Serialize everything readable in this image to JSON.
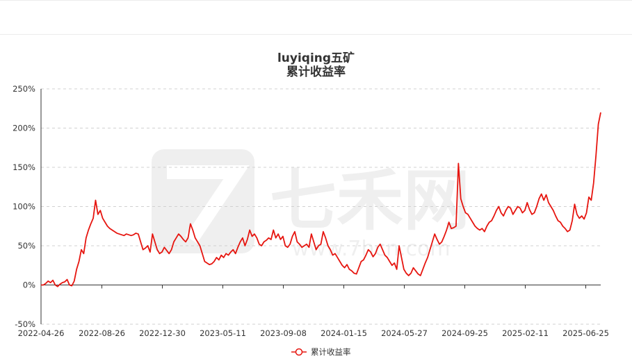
{
  "chart_data": {
    "type": "line",
    "title": "luyiqing五矿",
    "subtitle": "累计收益率",
    "watermark": {
      "brand": "七禾网",
      "url": "www.7hcn.com"
    },
    "y_ticks": [
      "250%",
      "200%",
      "150%",
      "100%",
      "50%",
      "0%",
      "-50%"
    ],
    "ylim": [
      -50,
      250
    ],
    "x_ticks": [
      "2022-04-26",
      "2022-08-26",
      "2022-12-30",
      "2023-05-11",
      "2023-09-08",
      "2024-01-15",
      "2024-05-27",
      "2024-09-25",
      "2025-02-11",
      "2025-06-25"
    ],
    "grid": true,
    "legend": "bottom-center",
    "series": [
      {
        "name": "累计收益率",
        "color": "#e6150f",
        "values": [
          0,
          0,
          2,
          5,
          3,
          6,
          0,
          -2,
          1,
          3,
          4,
          7,
          0,
          -1,
          5,
          20,
          30,
          45,
          40,
          60,
          70,
          78,
          85,
          108,
          90,
          95,
          85,
          80,
          75,
          72,
          70,
          68,
          66,
          65,
          64,
          63,
          65,
          64,
          63,
          64,
          66,
          65,
          55,
          45,
          47,
          50,
          42,
          65,
          55,
          45,
          40,
          42,
          48,
          44,
          40,
          45,
          55,
          60,
          65,
          62,
          58,
          55,
          60,
          78,
          70,
          60,
          55,
          50,
          40,
          30,
          28,
          26,
          27,
          30,
          35,
          32,
          38,
          35,
          40,
          38,
          42,
          45,
          40,
          48,
          55,
          60,
          50,
          58,
          70,
          62,
          65,
          60,
          52,
          50,
          55,
          57,
          60,
          58,
          70,
          60,
          65,
          58,
          62,
          50,
          48,
          52,
          62,
          68,
          55,
          52,
          48,
          50,
          52,
          48,
          65,
          55,
          45,
          50,
          52,
          68,
          60,
          50,
          45,
          38,
          40,
          35,
          30,
          25,
          22,
          26,
          20,
          18,
          15,
          14,
          22,
          30,
          32,
          38,
          45,
          42,
          36,
          40,
          48,
          52,
          45,
          38,
          35,
          30,
          25,
          28,
          20,
          50,
          35,
          20,
          15,
          12,
          15,
          22,
          18,
          14,
          12,
          20,
          28,
          35,
          45,
          55,
          65,
          58,
          52,
          55,
          62,
          70,
          80,
          72,
          73,
          75,
          155,
          110,
          100,
          92,
          90,
          85,
          80,
          75,
          72,
          70,
          72,
          68,
          75,
          80,
          82,
          88,
          95,
          100,
          92,
          88,
          95,
          100,
          98,
          90,
          95,
          100,
          98,
          92,
          95,
          105,
          96,
          90,
          92,
          100,
          110,
          116,
          108,
          115,
          105,
          100,
          95,
          88,
          82,
          80,
          75,
          72,
          68,
          70,
          82,
          103,
          90,
          85,
          88,
          84,
          92,
          112,
          108,
          130,
          165,
          205,
          220
        ]
      }
    ]
  }
}
